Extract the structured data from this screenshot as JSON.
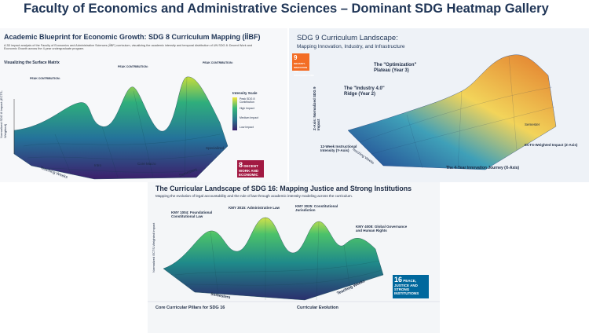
{
  "header": {
    "title": "Faculty of Economics and Administrative Sciences – Dominant SDG Heatmap Gallery"
  },
  "panels": [
    {
      "title": "Academic Blueprint for Economic Growth: SDG 8 Curriculum Mapping (İİBF)",
      "description": "A 3D impact analysis of the Faculty of Economics and Administrative Sciences (İİBF) curriculum, visualizing the academic intensity and temporal distribution of UN SDG 8: Decent Work and Economic Growth across the 4-year undergraduate program.",
      "section": "Visualizing the Surface Matrix",
      "annotations": [
        "PEAK CONTRIBUTION:",
        "PEAK CONTRIBUTION:",
        "PEAK CONTRIBUTION:"
      ],
      "z_axis": "Normalized SDG 8 Impact (ECTS-Weighted)",
      "x_axis": "Semesters",
      "y_axis": "Teaching Weeks",
      "regions": [
        "Intro",
        "Core Macro",
        "Specialized"
      ],
      "legend": {
        "title": "Intensity Scale",
        "items": [
          "Peak SDG 8 Contribution",
          "High Impact",
          "Medium Impact",
          "Low Impact"
        ]
      },
      "badge": {
        "number": "8",
        "label": "DECENT WORK AND ECONOMIC GROWTH"
      }
    },
    {
      "title": "SDG 9 Curriculum Landscape:",
      "subtitle": "Mapping Innovation, Industry, and Infrastructure",
      "callouts": [
        "The \"Optimization\" Plateau (Year 3)",
        "The \"Industry 4.0\" Ridge (Year 2)",
        "12-Week Instructional Intensity (Y-Axis)",
        "ECTS-Weighted Impact (Z-Axis)",
        "The 4-Year Innovation Journey (X-Axis)"
      ],
      "z_axis": "Z-Axis: Normalized SDG 9 Impact",
      "x_axis": "Semester",
      "y_axis": "Teaching Weeks",
      "badge": {
        "number": "9",
        "label": "INDUSTRY, INNOVATION AND INFRASTRUCTURE"
      }
    },
    {
      "title": "The Curricular Landscape of SDG 16: Mapping Justice and Strong Institutions",
      "subtitle": "Mapping the evolution of legal accountability and the rule of law through academic intensity modeling across the curriculum.",
      "peaks": [
        "KMY 1004: Foundational Constitutional Law",
        "KMY 3015: Administrative Law",
        "KMY 3025: Constitutional Jurisdiction",
        "KMY 4008: Global Governance and Human Rights"
      ],
      "z_axis": "Normalized ECTS-Weighted Impact",
      "x_axis": "Semesters",
      "y_axis": "Teaching Weeks",
      "sections": [
        "Core Curricular Pillars for SDG 16",
        "Curricular Evolution"
      ],
      "badge": {
        "number": "16",
        "label": "PEACE, JUSTICE AND STRONG INSTITUTIONS"
      }
    }
  ]
}
